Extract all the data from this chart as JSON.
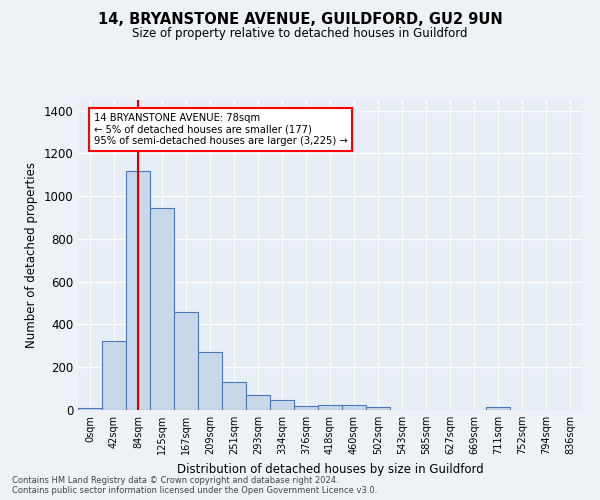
{
  "title1": "14, BRYANSTONE AVENUE, GUILDFORD, GU2 9UN",
  "title2": "Size of property relative to detached houses in Guildford",
  "xlabel": "Distribution of detached houses by size in Guildford",
  "ylabel": "Number of detached properties",
  "bin_labels": [
    "0sqm",
    "42sqm",
    "84sqm",
    "125sqm",
    "167sqm",
    "209sqm",
    "251sqm",
    "293sqm",
    "334sqm",
    "376sqm",
    "418sqm",
    "460sqm",
    "502sqm",
    "543sqm",
    "585sqm",
    "627sqm",
    "669sqm",
    "711sqm",
    "752sqm",
    "794sqm",
    "836sqm"
  ],
  "bar_heights": [
    10,
    325,
    1120,
    945,
    460,
    270,
    130,
    70,
    45,
    20,
    22,
    22,
    15,
    0,
    0,
    0,
    0,
    12,
    0,
    0,
    0
  ],
  "bar_color": "#c8d8e8",
  "bar_edge_color": "#4a7ab5",
  "red_line_x": 2,
  "annotation_text": "14 BRYANSTONE AVENUE: 78sqm\n← 5% of detached houses are smaller (177)\n95% of semi-detached houses are larger (3,225) →",
  "annotation_box_color": "white",
  "annotation_box_edge_color": "red",
  "red_line_color": "#cc0000",
  "ylim": [
    0,
    1450
  ],
  "yticks": [
    0,
    200,
    400,
    600,
    800,
    1000,
    1200,
    1400
  ],
  "footer1": "Contains HM Land Registry data © Crown copyright and database right 2024.",
  "footer2": "Contains public sector information licensed under the Open Government Licence v3.0.",
  "bg_color": "#eef2f7",
  "plot_bg_color": "#e8eef5"
}
